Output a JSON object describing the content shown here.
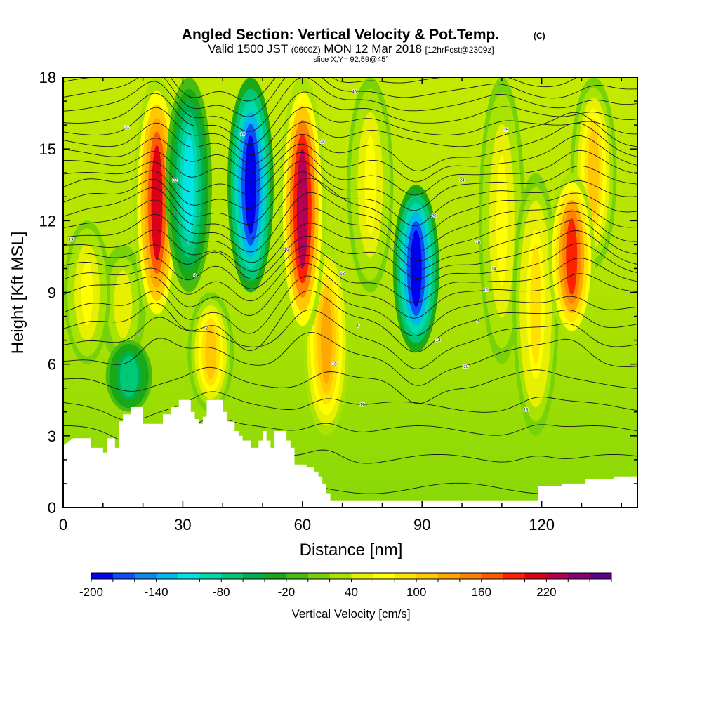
{
  "title": {
    "main": "Angled Section: Vertical Velocity & Pot.Temp.",
    "unit": "(C)",
    "valid_prefix": "Valid 1500 JST",
    "valid_utc": "(0600Z)",
    "valid_date": "MON 12 Mar 2018",
    "forecast": "[12hrFcst@2309z]",
    "slice": "slice X,Y= 92,59@45°"
  },
  "chart_data": {
    "type": "heatmap",
    "xlabel": "Distance [nm]",
    "ylabel": "Height [Kft MSL]",
    "xlim": [
      0,
      144
    ],
    "ylim": [
      0,
      18
    ],
    "x_ticks": [
      0,
      30,
      60,
      90,
      120
    ],
    "y_ticks": [
      0,
      3,
      6,
      9,
      12,
      15,
      18
    ],
    "colorbar": {
      "title": "Vertical Velocity [cm/s]",
      "tick_labels": [
        "-200",
        "-140",
        "-80",
        "-20",
        "40",
        "100",
        "160",
        "220"
      ],
      "levels": [
        -200,
        -180,
        -160,
        -140,
        -120,
        -100,
        -80,
        -60,
        -40,
        -20,
        0,
        20,
        40,
        60,
        80,
        100,
        120,
        140,
        160,
        180,
        200,
        220,
        240,
        260
      ],
      "colors": [
        "#0000f0",
        "#0b4ff5",
        "#0d86f0",
        "#00b8f0",
        "#00e5e5",
        "#00d8b0",
        "#00c878",
        "#00b04c",
        "#18a818",
        "#46bc12",
        "#78d208",
        "#a8e400",
        "#e6f000",
        "#ffff00",
        "#ffe200",
        "#ffc800",
        "#ffa800",
        "#ff8200",
        "#ff5a00",
        "#ff2000",
        "#dc0018",
        "#b40050",
        "#8a0070",
        "#5a008a"
      ]
    },
    "updrafts": [
      {
        "x": 23.5,
        "z_min": 7.5,
        "z_max": 18,
        "peak_cm_s": 200
      },
      {
        "x": 60,
        "z_min": 7,
        "z_max": 18,
        "peak_cm_s": 230
      },
      {
        "x": 127.5,
        "z_min": 7,
        "z_max": 14,
        "peak_cm_s": 180
      },
      {
        "x": 37,
        "z_min": 4,
        "z_max": 9,
        "peak_cm_s": 100
      },
      {
        "x": 6,
        "z_min": 6,
        "z_max": 12,
        "peak_cm_s": 60
      },
      {
        "x": 15,
        "z_min": 6,
        "z_max": 11,
        "peak_cm_s": 50
      },
      {
        "x": 66,
        "z_min": 3,
        "z_max": 11,
        "peak_cm_s": 120
      },
      {
        "x": 77,
        "z_min": 9,
        "z_max": 18,
        "peak_cm_s": 60
      },
      {
        "x": 110,
        "z_min": 6,
        "z_max": 18,
        "peak_cm_s": 60
      },
      {
        "x": 118.5,
        "z_min": 3,
        "z_max": 14,
        "peak_cm_s": 80
      },
      {
        "x": 133,
        "z_min": 10,
        "z_max": 18,
        "peak_cm_s": 100
      }
    ],
    "downdrafts": [
      {
        "x": 47,
        "z_min": 9,
        "z_max": 18,
        "peak_cm_s": -200
      },
      {
        "x": 88.5,
        "z_min": 6.5,
        "z_max": 13.5,
        "peak_cm_s": -200
      },
      {
        "x": 31.5,
        "z_min": 9,
        "z_max": 18,
        "peak_cm_s": -120
      },
      {
        "x": 16.5,
        "z_min": 4,
        "z_max": 7,
        "peak_cm_s": -80
      }
    ],
    "terrain_profile": [
      [
        0,
        2.6
      ],
      [
        2.5,
        2.9
      ],
      [
        7,
        2.9
      ],
      [
        7,
        2.5
      ],
      [
        10,
        2.5
      ],
      [
        10,
        2.3
      ],
      [
        11,
        2.3
      ],
      [
        11,
        2.9
      ],
      [
        13,
        2.9
      ],
      [
        13,
        2.5
      ],
      [
        14,
        2.5
      ],
      [
        14,
        3.6
      ],
      [
        15,
        3.6
      ],
      [
        15,
        3.9
      ],
      [
        17,
        3.9
      ],
      [
        17,
        4.2
      ],
      [
        20,
        4.2
      ],
      [
        20,
        3.5
      ],
      [
        25,
        3.5
      ],
      [
        25,
        3.9
      ],
      [
        27,
        3.9
      ],
      [
        27,
        4.2
      ],
      [
        29,
        4.2
      ],
      [
        29,
        4.5
      ],
      [
        32,
        4.5
      ],
      [
        32,
        4.0
      ],
      [
        33,
        4.0
      ],
      [
        33,
        3.7
      ],
      [
        34,
        3.7
      ],
      [
        34,
        3.5
      ],
      [
        35,
        3.5
      ],
      [
        35,
        3.8
      ],
      [
        36,
        3.8
      ],
      [
        36,
        4.5
      ],
      [
        40,
        4.5
      ],
      [
        40,
        4.0
      ],
      [
        41,
        4.0
      ],
      [
        41,
        3.6
      ],
      [
        43,
        3.6
      ],
      [
        43,
        3.2
      ],
      [
        44,
        3.2
      ],
      [
        44,
        3.0
      ],
      [
        45,
        3.0
      ],
      [
        45,
        2.8
      ],
      [
        47,
        2.8
      ],
      [
        47,
        2.5
      ],
      [
        49,
        2.5
      ],
      [
        49,
        2.8
      ],
      [
        50,
        2.8
      ],
      [
        50,
        3.2
      ],
      [
        51,
        3.2
      ],
      [
        51,
        2.8
      ],
      [
        52,
        2.8
      ],
      [
        52,
        2.5
      ],
      [
        53,
        2.5
      ],
      [
        53,
        3.2
      ],
      [
        56,
        3.2
      ],
      [
        56,
        2.8
      ],
      [
        57,
        2.8
      ],
      [
        57,
        2.5
      ],
      [
        58,
        2.5
      ],
      [
        58,
        1.8
      ],
      [
        61,
        1.8
      ],
      [
        61,
        1.7
      ],
      [
        63,
        1.7
      ],
      [
        63,
        1.5
      ],
      [
        64,
        1.5
      ],
      [
        64,
        1.3
      ],
      [
        65,
        1.3
      ],
      [
        65,
        1.0
      ],
      [
        66,
        1.0
      ],
      [
        66,
        0.6
      ],
      [
        67,
        0.6
      ],
      [
        67,
        0.3
      ],
      [
        119,
        0.3
      ],
      [
        119,
        0.9
      ],
      [
        125,
        0.9
      ],
      [
        125,
        1.0
      ],
      [
        131,
        1.0
      ],
      [
        131,
        1.2
      ],
      [
        138,
        1.2
      ],
      [
        138,
        1.3
      ],
      [
        144,
        1.3
      ]
    ],
    "isentropes_kft": [
      0.8,
      2.0,
      3.2,
      4.2,
      5.2,
      6.1,
      6.9,
      7.6,
      8.2,
      8.8,
      9.3,
      9.8,
      10.3,
      10.8,
      11.3,
      11.8,
      12.3,
      12.8,
      13.3,
      13.8,
      14.3,
      14.8,
      15.3,
      15.8,
      16.3,
      16.8,
      17.3,
      17.8
    ],
    "isentrope_labels": [
      {
        "x": 16,
        "z": 15.9,
        "t": "31"
      },
      {
        "x": 45,
        "z": 15.6,
        "t": "30"
      },
      {
        "x": 73,
        "z": 17.4,
        "t": "40"
      },
      {
        "x": 111,
        "z": 15.8,
        "t": "35"
      },
      {
        "x": 65,
        "z": 15.3,
        "t": "28"
      },
      {
        "x": 100,
        "z": 13.7,
        "t": "24"
      },
      {
        "x": 28,
        "z": 13.7,
        "t": "22"
      },
      {
        "x": 93,
        "z": 12.2,
        "t": "20"
      },
      {
        "x": 104,
        "z": 11.1,
        "t": "18"
      },
      {
        "x": 56,
        "z": 10.8,
        "t": "16"
      },
      {
        "x": 108,
        "z": 10.0,
        "t": "14"
      },
      {
        "x": 70,
        "z": 9.8,
        "t": "12"
      },
      {
        "x": 106,
        "z": 9.1,
        "t": "10"
      },
      {
        "x": 33,
        "z": 9.7,
        "t": "8"
      },
      {
        "x": 2,
        "z": 11.2,
        "t": "13"
      },
      {
        "x": 19,
        "z": 7.3,
        "t": "6"
      },
      {
        "x": 104,
        "z": 7.8,
        "t": "4"
      },
      {
        "x": 36,
        "z": 7.5,
        "t": "2"
      },
      {
        "x": 74,
        "z": 7.6,
        "t": "0"
      },
      {
        "x": 94,
        "z": 7.0,
        "t": "14"
      },
      {
        "x": 68,
        "z": 6.0,
        "t": "18"
      },
      {
        "x": 101,
        "z": 5.9,
        "t": "16"
      },
      {
        "x": 75,
        "z": 4.3,
        "t": "17"
      },
      {
        "x": 116,
        "z": 4.1,
        "t": "18"
      }
    ]
  }
}
